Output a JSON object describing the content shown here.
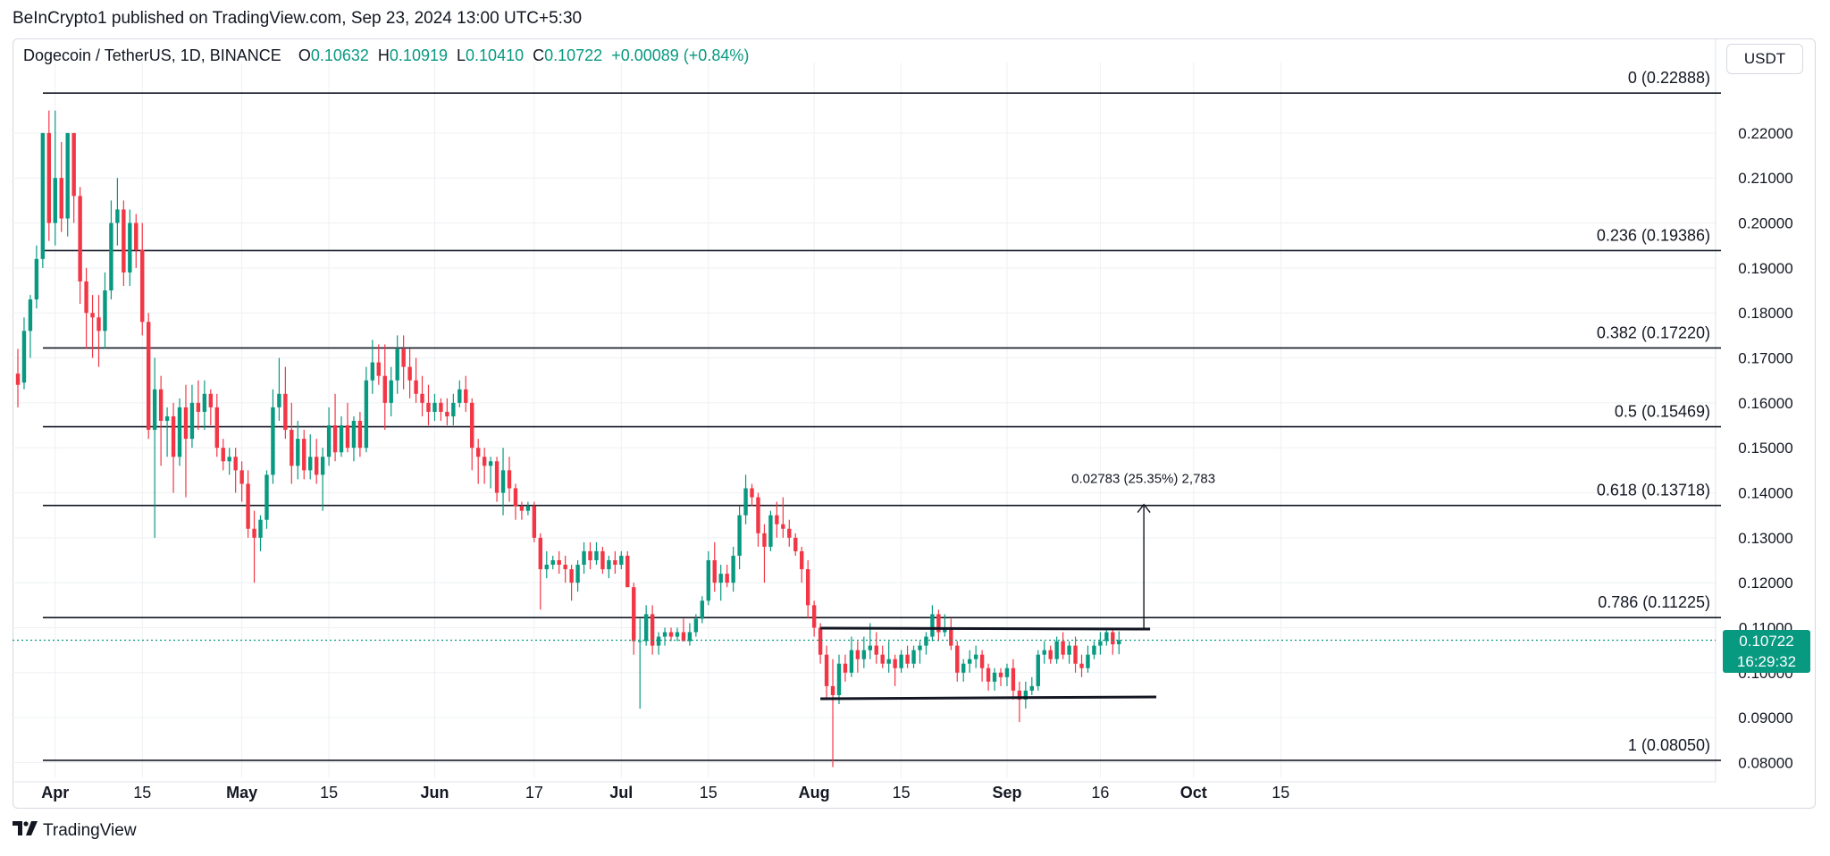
{
  "publish_line": "BeInCrypto1 published on TradingView.com, Sep 23, 2024 13:00 UTC+5:30",
  "brand": {
    "name": "TradingView",
    "logo_icon": "tradingview-logo-icon"
  },
  "legend": {
    "symbol": "Dogecoin / TetherUS, 1D, BINANCE",
    "o_label": "O",
    "o_value": "0.10632",
    "h_label": "H",
    "h_value": "0.10919",
    "l_label": "L",
    "l_value": "0.10410",
    "c_label": "C",
    "c_value": "0.10722",
    "change": "+0.00089 (+0.84%)"
  },
  "currency": "USDT",
  "last_price": {
    "price": "0.10722",
    "countdown": "16:29:32",
    "value": 0.10722
  },
  "colors": {
    "up": "#089981",
    "down": "#f23645",
    "line": "#131722",
    "grid": "#eef0f3",
    "axis_text": "#131722"
  },
  "chart_data": {
    "type": "candlestick",
    "title": "Dogecoin / TetherUS, 1D, BINANCE",
    "ylim": [
      0.0785,
      0.2325
    ],
    "y_ticks": [
      "0.22000",
      "0.21000",
      "0.20000",
      "0.19000",
      "0.18000",
      "0.17000",
      "0.16000",
      "0.15000",
      "0.14000",
      "0.13000",
      "0.12000",
      "0.11000",
      "0.10000",
      "0.09000",
      "0.08000"
    ],
    "x_ticks": [
      {
        "day": 6,
        "label": "Apr"
      },
      {
        "day": 20,
        "label": "15"
      },
      {
        "day": 36,
        "label": "May"
      },
      {
        "day": 50,
        "label": "15"
      },
      {
        "day": 67,
        "label": "Jun"
      },
      {
        "day": 83,
        "label": "17"
      },
      {
        "day": 97,
        "label": "Jul"
      },
      {
        "day": 111,
        "label": "15"
      },
      {
        "day": 128,
        "label": "Aug"
      },
      {
        "day": 142,
        "label": "15"
      },
      {
        "day": 159,
        "label": "Sep"
      },
      {
        "day": 174,
        "label": "16"
      },
      {
        "day": 189,
        "label": "Oct"
      },
      {
        "day": 203,
        "label": "15"
      }
    ],
    "fib_levels": [
      {
        "ratio": "0",
        "price": 0.22888,
        "label": "0 (0.22888)"
      },
      {
        "ratio": "0.236",
        "price": 0.19386,
        "label": "0.236 (0.19386)"
      },
      {
        "ratio": "0.382",
        "price": 0.1722,
        "label": "0.382 (0.17220)"
      },
      {
        "ratio": "0.5",
        "price": 0.15469,
        "label": "0.5 (0.15469)"
      },
      {
        "ratio": "0.618",
        "price": 0.13718,
        "label": "0.618 (0.13718)"
      },
      {
        "ratio": "0.786",
        "price": 0.11225,
        "label": "0.786 (0.11225)"
      },
      {
        "ratio": "1",
        "price": 0.0805,
        "label": "1 (0.08050)"
      }
    ],
    "channel": {
      "upper": {
        "day_start": 129,
        "price_start": 0.1099,
        "day_end": 182,
        "price_end": 0.1097
      },
      "lower": {
        "day_start": 129,
        "price_start": 0.0942,
        "day_end": 183,
        "price_end": 0.0946
      }
    },
    "measure": {
      "day": 181,
      "from_price": 0.1097,
      "to_price": 0.1374,
      "label": "0.02783 (25.35%) 2,783"
    },
    "candles": [
      [
        0.1665,
        0.172,
        0.159,
        0.164
      ],
      [
        0.1645,
        0.179,
        0.163,
        0.176
      ],
      [
        0.176,
        0.184,
        0.17,
        0.183
      ],
      [
        0.183,
        0.195,
        0.181,
        0.192
      ],
      [
        0.192,
        0.22,
        0.19,
        0.22
      ],
      [
        0.22,
        0.225,
        0.196,
        0.2
      ],
      [
        0.2,
        0.225,
        0.195,
        0.21
      ],
      [
        0.21,
        0.218,
        0.198,
        0.201
      ],
      [
        0.201,
        0.22,
        0.197,
        0.22
      ],
      [
        0.22,
        0.22,
        0.2,
        0.206
      ],
      [
        0.206,
        0.208,
        0.182,
        0.187
      ],
      [
        0.187,
        0.19,
        0.172,
        0.18
      ],
      [
        0.18,
        0.184,
        0.17,
        0.179
      ],
      [
        0.179,
        0.184,
        0.168,
        0.176
      ],
      [
        0.176,
        0.189,
        0.172,
        0.185
      ],
      [
        0.185,
        0.205,
        0.183,
        0.2
      ],
      [
        0.2,
        0.21,
        0.195,
        0.203
      ],
      [
        0.203,
        0.205,
        0.186,
        0.189
      ],
      [
        0.189,
        0.203,
        0.186,
        0.2
      ],
      [
        0.2,
        0.202,
        0.19,
        0.194
      ],
      [
        0.194,
        0.2,
        0.175,
        0.178
      ],
      [
        0.178,
        0.18,
        0.152,
        0.154
      ],
      [
        0.154,
        0.17,
        0.13,
        0.163
      ],
      [
        0.163,
        0.166,
        0.146,
        0.156
      ],
      [
        0.156,
        0.159,
        0.148,
        0.157
      ],
      [
        0.157,
        0.16,
        0.14,
        0.148
      ],
      [
        0.148,
        0.161,
        0.146,
        0.159
      ],
      [
        0.159,
        0.164,
        0.139,
        0.152
      ],
      [
        0.152,
        0.164,
        0.15,
        0.16
      ],
      [
        0.16,
        0.165,
        0.154,
        0.158
      ],
      [
        0.158,
        0.165,
        0.154,
        0.162
      ],
      [
        0.162,
        0.163,
        0.155,
        0.159
      ],
      [
        0.159,
        0.162,
        0.148,
        0.15
      ],
      [
        0.15,
        0.152,
        0.145,
        0.147
      ],
      [
        0.147,
        0.15,
        0.144,
        0.148
      ],
      [
        0.148,
        0.15,
        0.14,
        0.145
      ],
      [
        0.145,
        0.147,
        0.138,
        0.142
      ],
      [
        0.142,
        0.145,
        0.13,
        0.132
      ],
      [
        0.132,
        0.136,
        0.12,
        0.13
      ],
      [
        0.13,
        0.135,
        0.127,
        0.134
      ],
      [
        0.134,
        0.145,
        0.132,
        0.144
      ],
      [
        0.144,
        0.163,
        0.142,
        0.159
      ],
      [
        0.159,
        0.17,
        0.156,
        0.162
      ],
      [
        0.162,
        0.168,
        0.152,
        0.154
      ],
      [
        0.154,
        0.16,
        0.142,
        0.146
      ],
      [
        0.146,
        0.156,
        0.143,
        0.152
      ],
      [
        0.152,
        0.154,
        0.143,
        0.145
      ],
      [
        0.145,
        0.153,
        0.143,
        0.148
      ],
      [
        0.148,
        0.152,
        0.142,
        0.144
      ],
      [
        0.144,
        0.15,
        0.136,
        0.148
      ],
      [
        0.148,
        0.159,
        0.146,
        0.155
      ],
      [
        0.155,
        0.162,
        0.147,
        0.149
      ],
      [
        0.149,
        0.157,
        0.148,
        0.155
      ],
      [
        0.155,
        0.16,
        0.149,
        0.15
      ],
      [
        0.15,
        0.157,
        0.147,
        0.156
      ],
      [
        0.156,
        0.158,
        0.148,
        0.15
      ],
      [
        0.15,
        0.168,
        0.149,
        0.165
      ],
      [
        0.165,
        0.174,
        0.162,
        0.169
      ],
      [
        0.169,
        0.173,
        0.164,
        0.166
      ],
      [
        0.166,
        0.173,
        0.154,
        0.16
      ],
      [
        0.16,
        0.168,
        0.157,
        0.165
      ],
      [
        0.165,
        0.175,
        0.162,
        0.172
      ],
      [
        0.172,
        0.175,
        0.163,
        0.168
      ],
      [
        0.168,
        0.172,
        0.161,
        0.165
      ],
      [
        0.165,
        0.17,
        0.16,
        0.162
      ],
      [
        0.162,
        0.166,
        0.157,
        0.16
      ],
      [
        0.16,
        0.164,
        0.155,
        0.158
      ],
      [
        0.158,
        0.162,
        0.156,
        0.16
      ],
      [
        0.16,
        0.161,
        0.156,
        0.158
      ],
      [
        0.158,
        0.161,
        0.155,
        0.157
      ],
      [
        0.157,
        0.162,
        0.155,
        0.16
      ],
      [
        0.16,
        0.165,
        0.159,
        0.163
      ],
      [
        0.163,
        0.166,
        0.158,
        0.16
      ],
      [
        0.16,
        0.161,
        0.145,
        0.15
      ],
      [
        0.15,
        0.152,
        0.142,
        0.148
      ],
      [
        0.148,
        0.15,
        0.142,
        0.146
      ],
      [
        0.146,
        0.148,
        0.141,
        0.147
      ],
      [
        0.147,
        0.148,
        0.138,
        0.14
      ],
      [
        0.14,
        0.15,
        0.135,
        0.145
      ],
      [
        0.145,
        0.148,
        0.138,
        0.141
      ],
      [
        0.141,
        0.142,
        0.134,
        0.137
      ],
      [
        0.137,
        0.138,
        0.134,
        0.136
      ],
      [
        0.136,
        0.138,
        0.135,
        0.137
      ],
      [
        0.137,
        0.138,
        0.129,
        0.13
      ],
      [
        0.13,
        0.131,
        0.114,
        0.123
      ],
      [
        0.123,
        0.127,
        0.121,
        0.124
      ],
      [
        0.124,
        0.126,
        0.123,
        0.125
      ],
      [
        0.125,
        0.127,
        0.122,
        0.124
      ],
      [
        0.124,
        0.126,
        0.12,
        0.123
      ],
      [
        0.123,
        0.124,
        0.116,
        0.12
      ],
      [
        0.12,
        0.125,
        0.118,
        0.124
      ],
      [
        0.124,
        0.129,
        0.122,
        0.127
      ],
      [
        0.127,
        0.129,
        0.123,
        0.125
      ],
      [
        0.125,
        0.129,
        0.124,
        0.127
      ],
      [
        0.127,
        0.128,
        0.122,
        0.123
      ],
      [
        0.123,
        0.126,
        0.121,
        0.125
      ],
      [
        0.125,
        0.127,
        0.122,
        0.124
      ],
      [
        0.124,
        0.127,
        0.123,
        0.126
      ],
      [
        0.126,
        0.127,
        0.119,
        0.119
      ],
      [
        0.119,
        0.12,
        0.104,
        0.107
      ],
      [
        0.107,
        0.112,
        0.092,
        0.107
      ],
      [
        0.107,
        0.115,
        0.106,
        0.113
      ],
      [
        0.113,
        0.115,
        0.104,
        0.106
      ],
      [
        0.106,
        0.109,
        0.104,
        0.108
      ],
      [
        0.108,
        0.11,
        0.106,
        0.109
      ],
      [
        0.109,
        0.11,
        0.107,
        0.108
      ],
      [
        0.108,
        0.11,
        0.107,
        0.109
      ],
      [
        0.109,
        0.112,
        0.107,
        0.107
      ],
      [
        0.107,
        0.111,
        0.106,
        0.109
      ],
      [
        0.109,
        0.113,
        0.108,
        0.112
      ],
      [
        0.112,
        0.117,
        0.111,
        0.116
      ],
      [
        0.116,
        0.127,
        0.115,
        0.125
      ],
      [
        0.125,
        0.129,
        0.118,
        0.12
      ],
      [
        0.12,
        0.124,
        0.116,
        0.122
      ],
      [
        0.122,
        0.124,
        0.119,
        0.12
      ],
      [
        0.12,
        0.128,
        0.118,
        0.126
      ],
      [
        0.126,
        0.137,
        0.123,
        0.135
      ],
      [
        0.135,
        0.144,
        0.133,
        0.141
      ],
      [
        0.141,
        0.142,
        0.137,
        0.139
      ],
      [
        0.139,
        0.14,
        0.128,
        0.131
      ],
      [
        0.131,
        0.133,
        0.12,
        0.128
      ],
      [
        0.128,
        0.136,
        0.127,
        0.135
      ],
      [
        0.135,
        0.138,
        0.13,
        0.133
      ],
      [
        0.133,
        0.139,
        0.13,
        0.132
      ],
      [
        0.132,
        0.134,
        0.128,
        0.13
      ],
      [
        0.13,
        0.131,
        0.126,
        0.127
      ],
      [
        0.127,
        0.128,
        0.12,
        0.123
      ],
      [
        0.123,
        0.125,
        0.112,
        0.115
      ],
      [
        0.115,
        0.116,
        0.108,
        0.11
      ],
      [
        0.11,
        0.111,
        0.102,
        0.104
      ],
      [
        0.104,
        0.106,
        0.094,
        0.097
      ],
      [
        0.097,
        0.103,
        0.079,
        0.095
      ],
      [
        0.095,
        0.104,
        0.093,
        0.102
      ],
      [
        0.102,
        0.104,
        0.098,
        0.1
      ],
      [
        0.1,
        0.108,
        0.099,
        0.105
      ],
      [
        0.105,
        0.107,
        0.1,
        0.103
      ],
      [
        0.103,
        0.108,
        0.101,
        0.105
      ],
      [
        0.105,
        0.111,
        0.103,
        0.106
      ],
      [
        0.106,
        0.109,
        0.102,
        0.104
      ],
      [
        0.104,
        0.106,
        0.101,
        0.102
      ],
      [
        0.102,
        0.107,
        0.1,
        0.103
      ],
      [
        0.103,
        0.104,
        0.097,
        0.101
      ],
      [
        0.101,
        0.105,
        0.1,
        0.104
      ],
      [
        0.104,
        0.106,
        0.101,
        0.102
      ],
      [
        0.102,
        0.106,
        0.101,
        0.105
      ],
      [
        0.105,
        0.107,
        0.102,
        0.106
      ],
      [
        0.106,
        0.109,
        0.104,
        0.108
      ],
      [
        0.108,
        0.115,
        0.107,
        0.113
      ],
      [
        0.113,
        0.114,
        0.107,
        0.109
      ],
      [
        0.109,
        0.113,
        0.108,
        0.11
      ],
      [
        0.11,
        0.112,
        0.105,
        0.106
      ],
      [
        0.106,
        0.107,
        0.098,
        0.1
      ],
      [
        0.1,
        0.103,
        0.098,
        0.102
      ],
      [
        0.102,
        0.105,
        0.1,
        0.103
      ],
      [
        0.103,
        0.106,
        0.101,
        0.104
      ],
      [
        0.104,
        0.105,
        0.098,
        0.101
      ],
      [
        0.101,
        0.102,
        0.096,
        0.098
      ],
      [
        0.098,
        0.101,
        0.096,
        0.1
      ],
      [
        0.1,
        0.101,
        0.097,
        0.099
      ],
      [
        0.099,
        0.102,
        0.097,
        0.101
      ],
      [
        0.101,
        0.103,
        0.094,
        0.096
      ],
      [
        0.096,
        0.098,
        0.089,
        0.094
      ],
      [
        0.094,
        0.098,
        0.092,
        0.096
      ],
      [
        0.096,
        0.099,
        0.095,
        0.097
      ],
      [
        0.097,
        0.105,
        0.096,
        0.104
      ],
      [
        0.104,
        0.107,
        0.102,
        0.105
      ],
      [
        0.105,
        0.106,
        0.102,
        0.103
      ],
      [
        0.103,
        0.108,
        0.102,
        0.107
      ],
      [
        0.107,
        0.109,
        0.103,
        0.104
      ],
      [
        0.104,
        0.107,
        0.102,
        0.106
      ],
      [
        0.106,
        0.108,
        0.1,
        0.102
      ],
      [
        0.102,
        0.104,
        0.099,
        0.101
      ],
      [
        0.101,
        0.106,
        0.1,
        0.104
      ],
      [
        0.104,
        0.107,
        0.103,
        0.106
      ],
      [
        0.106,
        0.109,
        0.104,
        0.107
      ],
      [
        0.107,
        0.11,
        0.106,
        0.109
      ],
      [
        0.109,
        0.11,
        0.104,
        0.1063
      ],
      [
        0.10632,
        0.10919,
        0.1041,
        0.10722
      ]
    ]
  }
}
